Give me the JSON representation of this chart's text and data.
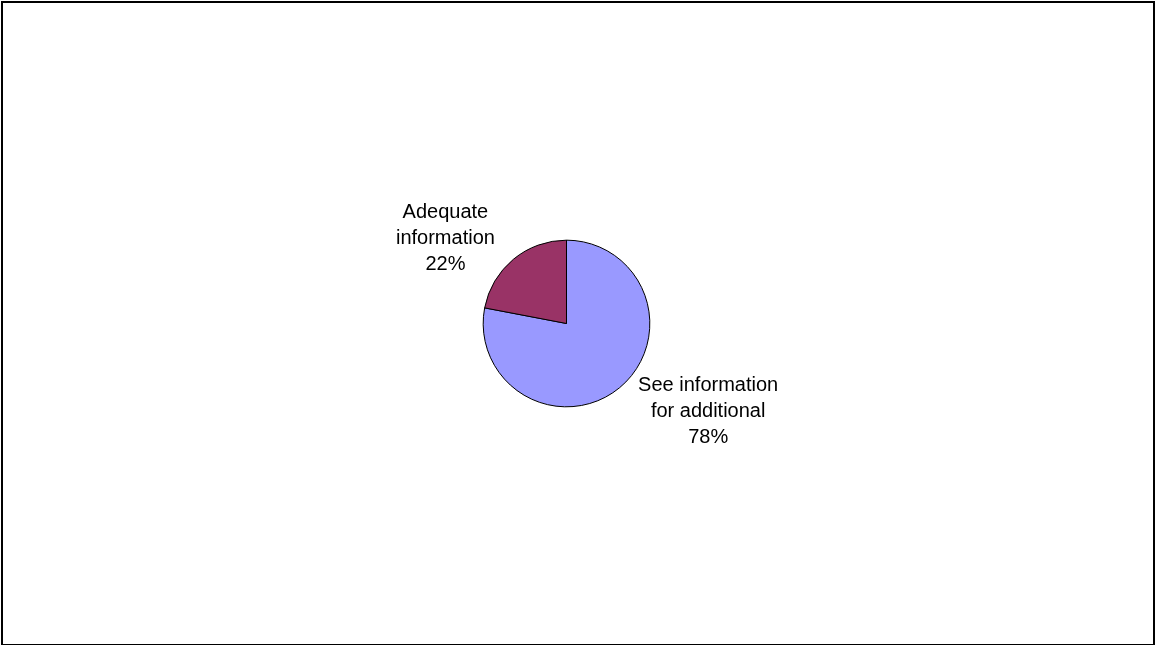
{
  "chart_data": {
    "type": "pie",
    "categories": [
      "See information for additional",
      "Adequate information"
    ],
    "values": [
      78,
      22
    ],
    "value_labels": [
      "78%",
      "22%"
    ],
    "colors": [
      "#9999ff",
      "#993366"
    ],
    "legend": false
  }
}
